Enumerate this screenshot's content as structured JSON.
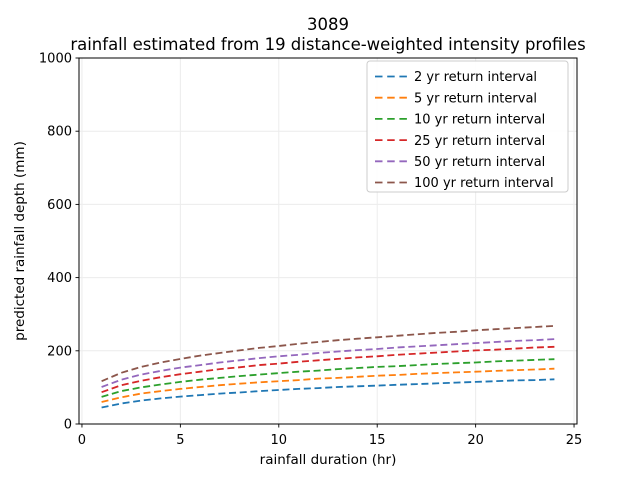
{
  "figure": {
    "background": "#ffffff",
    "text_color": "#000000",
    "grid_color": "#ececec",
    "spine_color": "#000000",
    "legend_border_color": "#cccccc"
  },
  "chart_data": {
    "type": "line",
    "title": "3089",
    "subtitle": "rainfall estimated from 19 distance-weighted intensity profiles",
    "xlabel": "rainfall duration (hr)",
    "ylabel": "predicted rainfall depth (mm)",
    "xlim": [
      -0.15,
      25.15
    ],
    "ylim": [
      0,
      1000
    ],
    "xticks": [
      0,
      5,
      10,
      15,
      20,
      25
    ],
    "yticks": [
      0,
      200,
      400,
      600,
      800,
      1000
    ],
    "grid": true,
    "line_style": "dashed",
    "legend_position": "upper right",
    "x": [
      1,
      2,
      3,
      4,
      5,
      6,
      7,
      8,
      9,
      10,
      11,
      12,
      13,
      14,
      15,
      16,
      17,
      18,
      19,
      20,
      21,
      22,
      23,
      24
    ],
    "series": [
      {
        "name": "2 yr return interval",
        "color": "#1f77b4",
        "values": [
          45,
          56,
          64,
          70,
          75,
          79,
          83,
          86,
          90,
          93,
          96,
          98,
          101,
          103,
          105,
          107,
          109,
          111,
          113,
          115,
          117,
          119,
          120,
          122
        ]
      },
      {
        "name": "5 yr return interval",
        "color": "#ff7f0e",
        "values": [
          60,
          73,
          83,
          90,
          96,
          101,
          106,
          110,
          114,
          117,
          120,
          124,
          126,
          129,
          132,
          134,
          137,
          139,
          141,
          143,
          145,
          147,
          149,
          151
        ]
      },
      {
        "name": "10 yr return interval",
        "color": "#2ca02c",
        "values": [
          74,
          90,
          100,
          108,
          115,
          121,
          126,
          131,
          135,
          139,
          143,
          146,
          150,
          153,
          156,
          158,
          161,
          164,
          166,
          168,
          171,
          173,
          175,
          177
        ]
      },
      {
        "name": "25 yr return interval",
        "color": "#d62728",
        "values": [
          87,
          106,
          118,
          128,
          136,
          143,
          150,
          155,
          161,
          165,
          170,
          174,
          178,
          182,
          185,
          189,
          192,
          195,
          198,
          201,
          203,
          206,
          209,
          211
        ]
      },
      {
        "name": "50 yr return interval",
        "color": "#9467bd",
        "values": [
          101,
          121,
          135,
          145,
          154,
          161,
          168,
          174,
          180,
          185,
          189,
          194,
          198,
          202,
          205,
          209,
          212,
          215,
          218,
          221,
          224,
          227,
          229,
          232
        ]
      },
      {
        "name": "100 yr return interval",
        "color": "#8c564b",
        "values": [
          117,
          140,
          156,
          168,
          178,
          187,
          194,
          201,
          208,
          213,
          219,
          224,
          229,
          233,
          237,
          241,
          245,
          249,
          252,
          256,
          259,
          262,
          265,
          268
        ]
      }
    ]
  }
}
